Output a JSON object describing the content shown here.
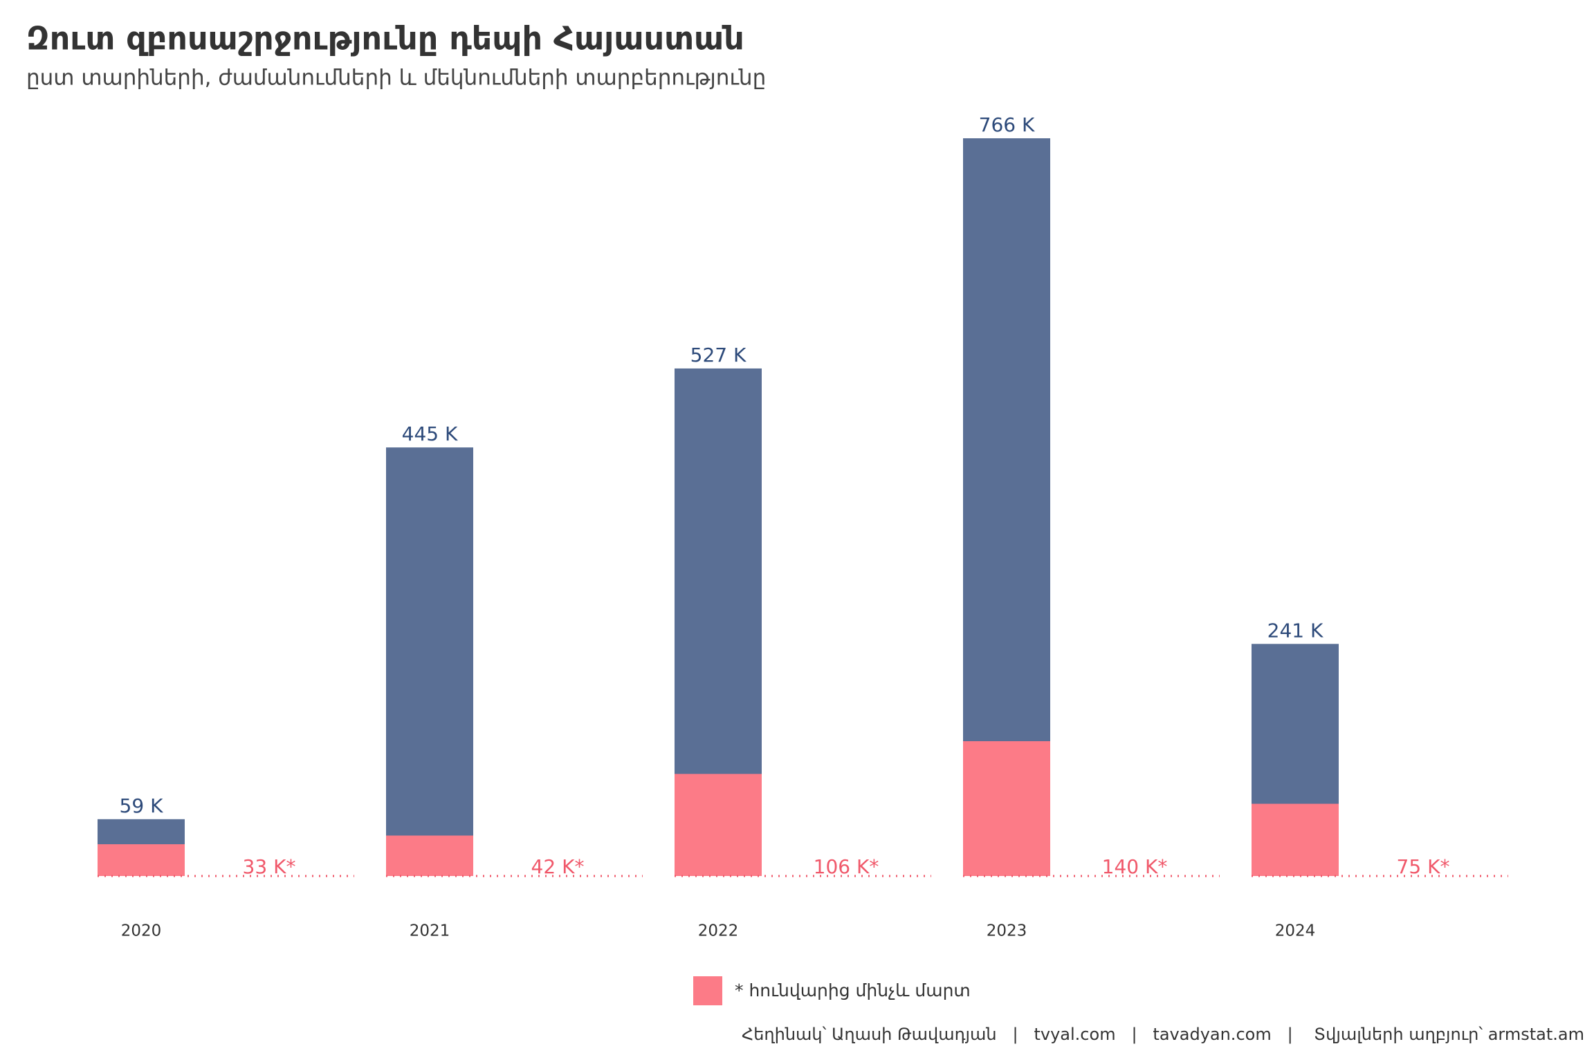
{
  "chart_data": {
    "type": "bar",
    "title": "Զուտ զբոսաշրջությունը դեպի Հայաստան",
    "subtitle": "ըստ տարիների, ժամանումների և մեկնումների տարբերությունը",
    "categories": [
      "2020",
      "2021",
      "2022",
      "2023",
      "2024"
    ],
    "series": [
      {
        "color": "#5a6f95",
        "label_color": "#2d4a7a",
        "values": [
          59,
          445,
          527,
          766,
          241
        ],
        "value_labels": [
          "59 K",
          "445 K",
          "527 K",
          "766 K",
          "241 K"
        ]
      },
      {
        "name": "* հունվարից մինչև մարտ",
        "color": "#fc7b87",
        "label_color": "#f0586a",
        "values": [
          33,
          42,
          106,
          140,
          75
        ],
        "value_labels": [
          "33 K*",
          "42 K*",
          "106 K*",
          "140 K*",
          "75 K*"
        ]
      }
    ],
    "caption": "Հեղինակ՝ Աղասի Թավադյան   |   tvyal.com   |   tavadyan.com   |    Տվյալների աղբյուր՝ armstat.am"
  }
}
